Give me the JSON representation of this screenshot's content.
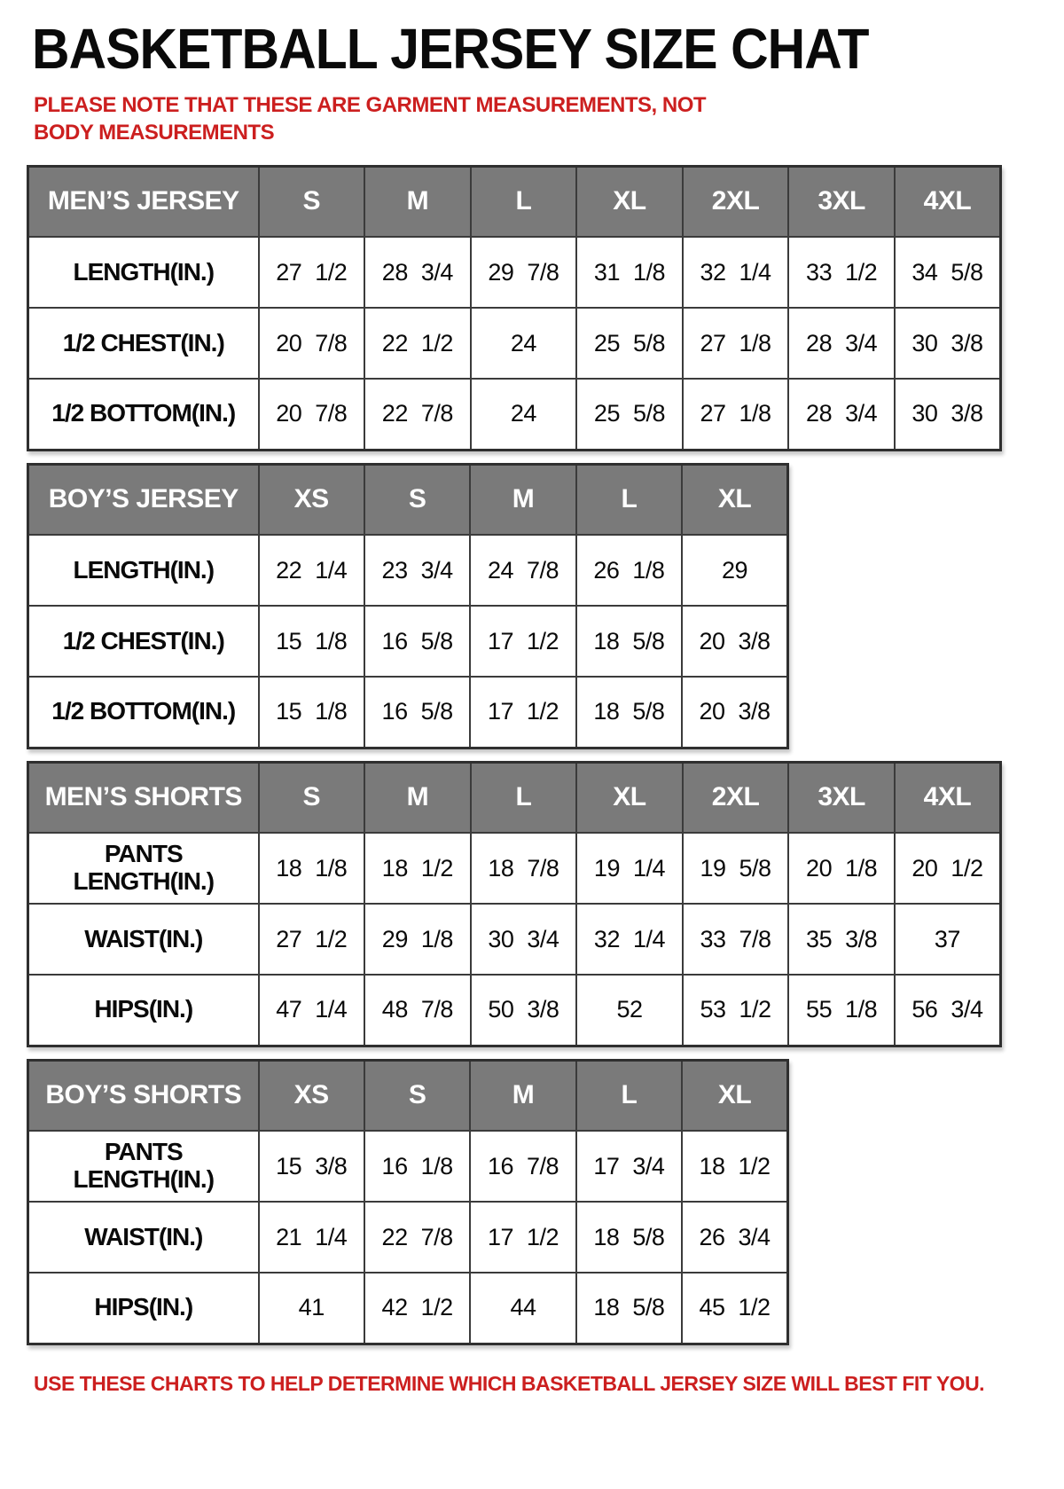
{
  "page": {
    "title": "BASKETBALL JERSEY SIZE CHAT",
    "note_top": "PLEASE NOTE THAT THESE ARE GARMENT MEASUREMENTS, NOT BODY MEASUREMENTS",
    "note_bottom": "USE THESE CHARTS TO HELP DETERMINE WHICH BASKETBALL JERSEY SIZE WILL BEST FIT YOU."
  },
  "colors": {
    "header_bg": "#7a7a7a",
    "header_text": "#ffffff",
    "border": "#3b3b3b",
    "note_red": "#cc1f1f"
  },
  "tables": [
    {
      "id": "mens-jersey",
      "header": [
        "MEN’S JERSEY",
        "S",
        "M",
        "L",
        "XL",
        "2XL",
        "3XL",
        "4XL"
      ],
      "rows": [
        [
          "LENGTH(IN.)",
          "27 1/2",
          "28 3/4",
          "29 7/8",
          "31 1/8",
          "32 1/4",
          "33 1/2",
          "34 5/8"
        ],
        [
          "1/2 CHEST(IN.)",
          "20 7/8",
          "22 1/2",
          "24",
          "25 5/8",
          "27 1/8",
          "28 3/4",
          "30 3/8"
        ],
        [
          "1/2 BOTTOM(IN.)",
          "20 7/8",
          "22 7/8",
          "24",
          "25 5/8",
          "27 1/8",
          "28 3/4",
          "30 3/8"
        ]
      ]
    },
    {
      "id": "boys-jersey",
      "header": [
        "BOY’S JERSEY",
        "XS",
        "S",
        "M",
        "L",
        "XL"
      ],
      "rows": [
        [
          "LENGTH(IN.)",
          "22 1/4",
          "23 3/4",
          "24 7/8",
          "26 1/8",
          "29"
        ],
        [
          "1/2 CHEST(IN.)",
          "15 1/8",
          "16 5/8",
          "17 1/2",
          "18 5/8",
          "20 3/8"
        ],
        [
          "1/2 BOTTOM(IN.)",
          "15 1/8",
          "16 5/8",
          "17 1/2",
          "18 5/8",
          "20 3/8"
        ]
      ]
    },
    {
      "id": "mens-shorts",
      "header": [
        "MEN’S SHORTS",
        "S",
        "M",
        "L",
        "XL",
        "2XL",
        "3XL",
        "4XL"
      ],
      "rows": [
        [
          "PANTS LENGTH(IN.)",
          "18 1/8",
          "18 1/2",
          "18 7/8",
          "19 1/4",
          "19 5/8",
          "20 1/8",
          "20 1/2"
        ],
        [
          "WAIST(IN.)",
          "27 1/2",
          "29 1/8",
          "30 3/4",
          "32 1/4",
          "33 7/8",
          "35 3/8",
          "37"
        ],
        [
          "HIPS(IN.)",
          "47 1/4",
          "48 7/8",
          "50 3/8",
          "52",
          "53 1/2",
          "55 1/8",
          "56 3/4"
        ]
      ]
    },
    {
      "id": "boys-shorts",
      "header": [
        "BOY’S SHORTS",
        "XS",
        "S",
        "M",
        "L",
        "XL"
      ],
      "rows": [
        [
          "PANTS LENGTH(IN.)",
          "15 3/8",
          "16 1/8",
          "16 7/8",
          "17 3/4",
          "18 1/2"
        ],
        [
          "WAIST(IN.)",
          "21 1/4",
          "22 7/8",
          "17 1/2",
          "18 5/8",
          "26 3/4"
        ],
        [
          "HIPS(IN.)",
          "41",
          "42 1/2",
          "44",
          "18 5/8",
          "45 1/2"
        ]
      ]
    }
  ]
}
